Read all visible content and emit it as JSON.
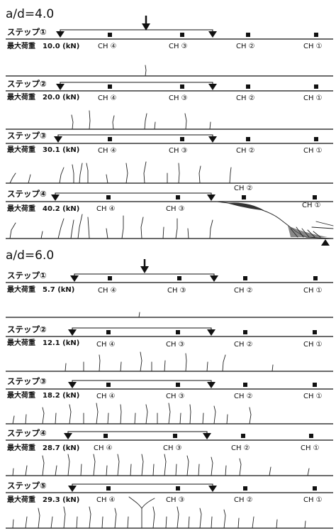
{
  "sections": [
    {
      "title": "a/d=4.0",
      "steps": [
        {
          "step": "ステップ①",
          "load_label": "最大荷重",
          "load": "10.0 (kN)",
          "ch": [
            "CH ④",
            "CH ③",
            "CH ②",
            "CH ①"
          ]
        },
        {
          "step": "ステップ②",
          "load_label": "最大荷重",
          "load": "20.0 (kN)",
          "ch": [
            "CH ④",
            "CH ③",
            "CH ②",
            "CH ①"
          ]
        },
        {
          "step": "ステップ③",
          "load_label": "最大荷重",
          "load": "30.1 (kN)",
          "ch": [
            "CH ④",
            "CH ③",
            "CH ②",
            "CH ①"
          ]
        },
        {
          "step": "ステップ④",
          "load_label": "最大荷重",
          "load": "40.2 (kN)",
          "ch": [
            "CH ④",
            "CH ③",
            "CH ②",
            "CH ①"
          ]
        }
      ]
    },
    {
      "title": "a/d=6.0",
      "steps": [
        {
          "step": "ステップ①",
          "load_label": "最大荷重",
          "load": "5.7 (kN)",
          "ch": [
            "CH ④",
            "CH ③",
            "CH ②",
            "CH ①"
          ]
        },
        {
          "step": "ステップ②",
          "load_label": "最大荷重",
          "load": "12.1 (kN)",
          "ch": [
            "CH ④",
            "CH ③",
            "CH ②",
            "CH ①"
          ]
        },
        {
          "step": "ステップ③",
          "load_label": "最大荷重",
          "load": "18.2 (kN)",
          "ch": [
            "CH ④",
            "CH ③",
            "CH ②",
            "CH ①"
          ]
        },
        {
          "step": "ステップ④",
          "load_label": "最大荷重",
          "load": "28.7 (kN)",
          "ch": [
            "CH ④",
            "CH ③",
            "CH ②",
            "CH ①"
          ]
        },
        {
          "step": "ステップ⑤",
          "load_label": "最大荷重",
          "load": "29.3 (kN)",
          "ch": [
            "CH ④",
            "CH ③",
            "CH ②",
            "CH ①"
          ]
        }
      ]
    }
  ],
  "colors": {
    "ink": "#111111",
    "background": "#ffffff"
  },
  "icons": {
    "load_point": "down-arrow-icon",
    "support": "triangle-support-icon",
    "channel": "square-marker-icon"
  }
}
